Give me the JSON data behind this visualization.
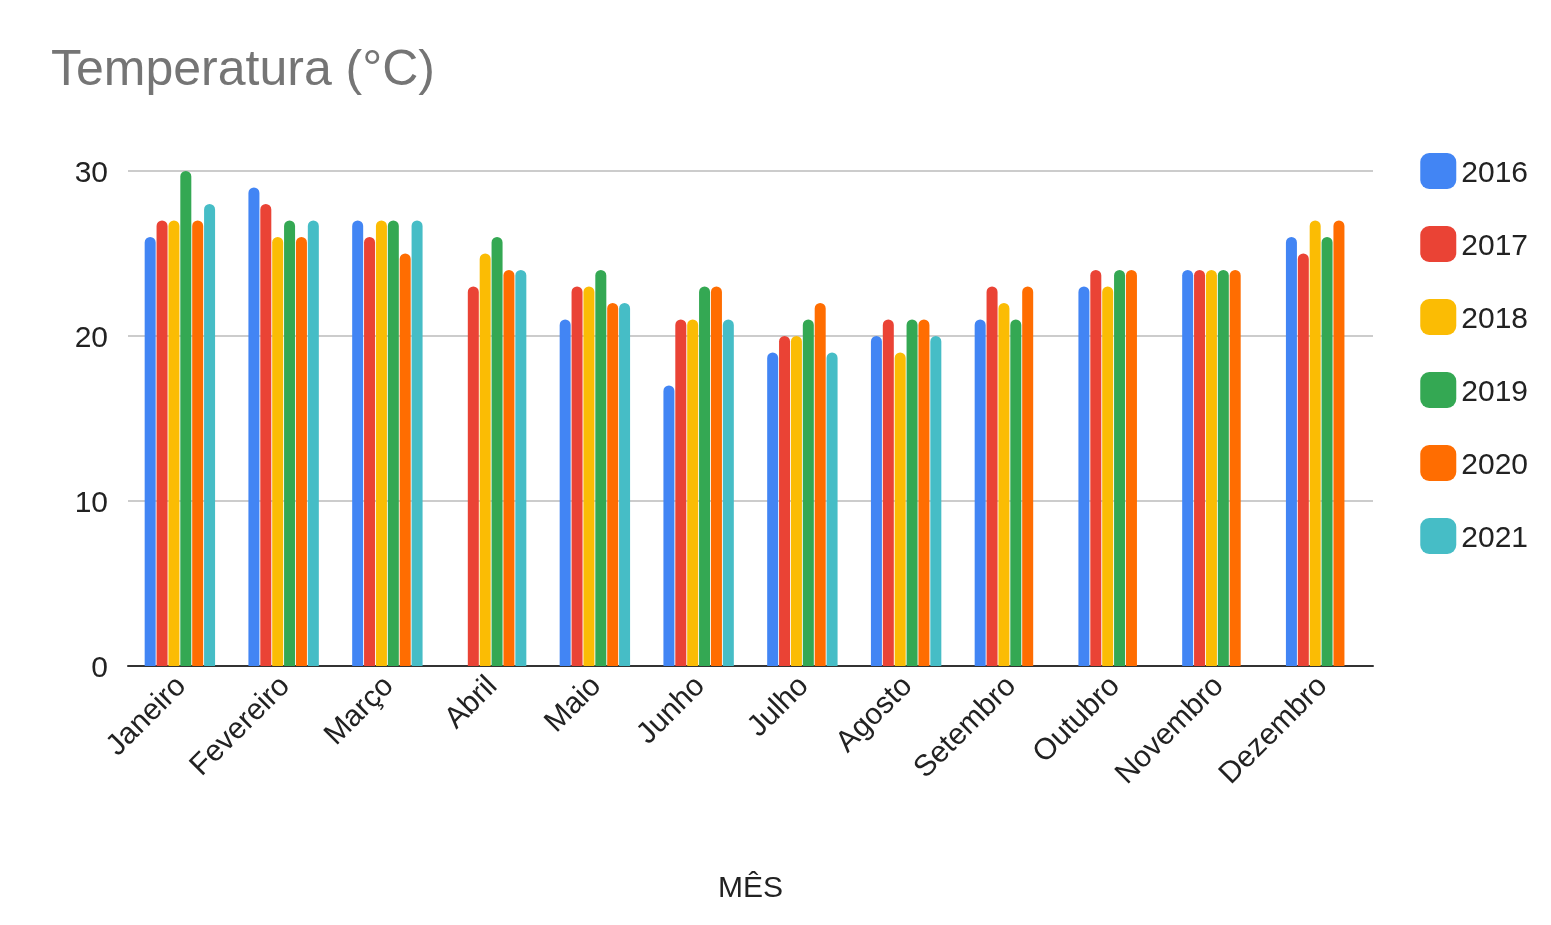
{
  "chart_data": {
    "type": "bar",
    "title": "Temperatura (°C)",
    "xlabel": "MÊS",
    "categories": [
      "Janeiro",
      "Fevereiro",
      "Março",
      "Abril",
      "Maio",
      "Junho",
      "Julho",
      "Agosto",
      "Setembro",
      "Outubro",
      "Novembro",
      "Dezembro"
    ],
    "series": [
      {
        "name": "2016",
        "color": "#4285f4",
        "values": [
          26,
          29,
          27,
          null,
          21,
          17,
          19,
          20,
          21,
          23,
          24,
          26
        ]
      },
      {
        "name": "2017",
        "color": "#ea4335",
        "values": [
          27,
          28,
          26,
          23,
          23,
          21,
          20,
          21,
          23,
          24,
          24,
          25
        ]
      },
      {
        "name": "2018",
        "color": "#fbbc04",
        "values": [
          27,
          26,
          27,
          25,
          23,
          21,
          20,
          19,
          22,
          23,
          24,
          27
        ]
      },
      {
        "name": "2019",
        "color": "#34a853",
        "values": [
          30,
          27,
          27,
          26,
          24,
          23,
          21,
          21,
          21,
          24,
          24,
          26
        ]
      },
      {
        "name": "2020",
        "color": "#ff6d01",
        "values": [
          27,
          26,
          25,
          24,
          22,
          23,
          22,
          21,
          23,
          24,
          24,
          27
        ]
      },
      {
        "name": "2021",
        "color": "#46bdc6",
        "values": [
          28,
          27,
          27,
          24,
          22,
          21,
          19,
          20,
          null,
          null,
          null,
          null
        ]
      }
    ],
    "ylim": [
      0,
      30
    ],
    "yticks": [
      0,
      10,
      20,
      30
    ],
    "grid": "y",
    "legend": "right"
  }
}
